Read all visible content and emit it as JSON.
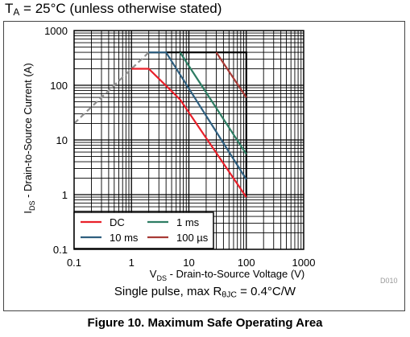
{
  "header": {
    "conditions": "T_A = 25°C (unless otherwise stated)",
    "conditions_parts": {
      "symbol": "T",
      "subscript": "A",
      "rest": " = 25°C (unless otherwise stated)"
    }
  },
  "footnote_parts": {
    "pre": "Single pulse, max R",
    "subscript": "θJC",
    "post": " = 0.4°C/W"
  },
  "caption": "Figure 10. Maximum Safe Operating Area",
  "figure_code": "D010",
  "chart_data": {
    "type": "line",
    "title": "Maximum Safe Operating Area",
    "xlabel": "V_DS - Drain-to-Source Voltage (V)",
    "ylabel": "I_DS - Drain-to-Source Current (A)",
    "xlabel_parts": {
      "symbol": "V",
      "subscript": "DS",
      "rest": " - Drain-to-Source Voltage (V)"
    },
    "ylabel_parts": {
      "symbol": "I",
      "subscript": "DS",
      "rest": " - Drain-to-Source Current (A)"
    },
    "x_scale": "log",
    "y_scale": "log",
    "xlim": [
      0.1,
      1000
    ],
    "ylim": [
      0.1,
      1000
    ],
    "x_ticks": [
      "0.1",
      "1",
      "10",
      "100",
      "1000"
    ],
    "y_ticks": [
      "0.1",
      "1",
      "10",
      "100",
      "1000"
    ],
    "grid": true,
    "legend_position": "bottom-left",
    "rds_limit": {
      "color": "#909090",
      "dashed": true,
      "x": [
        0.1,
        2
      ],
      "y": [
        20,
        400
      ]
    },
    "series": [
      {
        "name": "DC",
        "color": "#e8202a",
        "x": [
          1,
          2,
          7,
          100
        ],
        "y": [
          200,
          200,
          55,
          0.9
        ]
      },
      {
        "name": "10 ms",
        "color": "#2f5f7f",
        "x": [
          2,
          4,
          100
        ],
        "y": [
          400,
          400,
          1.9
        ]
      },
      {
        "name": "1 ms",
        "color": "#2e7d63",
        "x": [
          7,
          100
        ],
        "y": [
          400,
          5.5
        ]
      },
      {
        "name": "100 µs",
        "color": "#a83b36",
        "x": [
          30,
          100
        ],
        "y": [
          400,
          60
        ]
      }
    ],
    "boundary": {
      "color": "#000000",
      "x": [
        2,
        100,
        100
      ],
      "y": [
        400,
        400,
        0.9
      ]
    }
  }
}
